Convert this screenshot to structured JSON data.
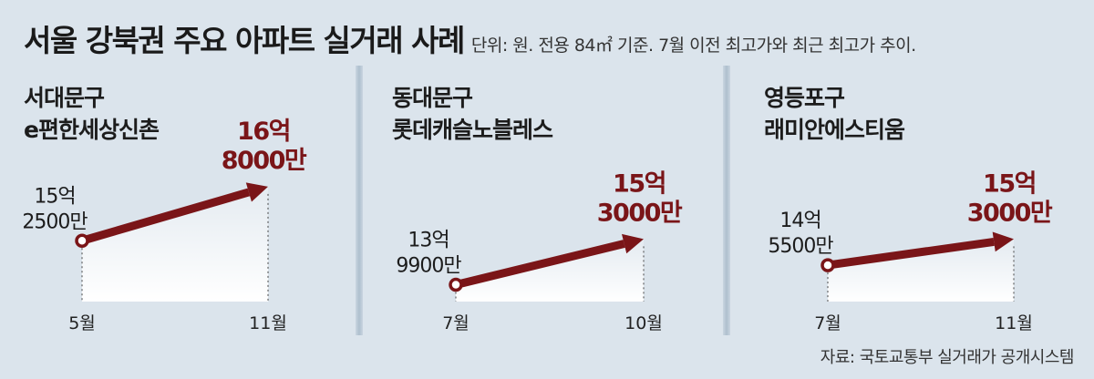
{
  "header": {
    "title": "서울 강북권 주요 아파트 실거래 사례",
    "subtitle": "단위: 원. 전용 84㎡ 기준. 7월 이전 최고가와 최근 최고가 추이."
  },
  "colors": {
    "accent": "#7a1518",
    "background": "#dbe4ec"
  },
  "chart_data": [
    {
      "type": "line",
      "district": "서대문구",
      "apartment": "e편한세상신촌",
      "categories": [
        "5월",
        "11월"
      ],
      "values": [
        152500,
        168000
      ],
      "unit": "만원",
      "labels": [
        {
          "line1": "15억",
          "line2": "2500만"
        },
        {
          "line1": "16억",
          "line2": "8000만"
        }
      ]
    },
    {
      "type": "line",
      "district": "동대문구",
      "apartment": "롯데캐슬노블레스",
      "categories": [
        "7월",
        "10월"
      ],
      "values": [
        139900,
        153000
      ],
      "unit": "만원",
      "labels": [
        {
          "line1": "13억",
          "line2": "9900만"
        },
        {
          "line1": "15억",
          "line2": "3000만"
        }
      ]
    },
    {
      "type": "line",
      "district": "영등포구",
      "apartment": "래미안에스티움",
      "categories": [
        "7월",
        "11월"
      ],
      "values": [
        145500,
        153000
      ],
      "unit": "만원",
      "labels": [
        {
          "line1": "14억",
          "line2": "5500만"
        },
        {
          "line1": "15억",
          "line2": "3000만"
        }
      ]
    }
  ],
  "source": "자료: 국토교통부 실거래가 공개시스템"
}
